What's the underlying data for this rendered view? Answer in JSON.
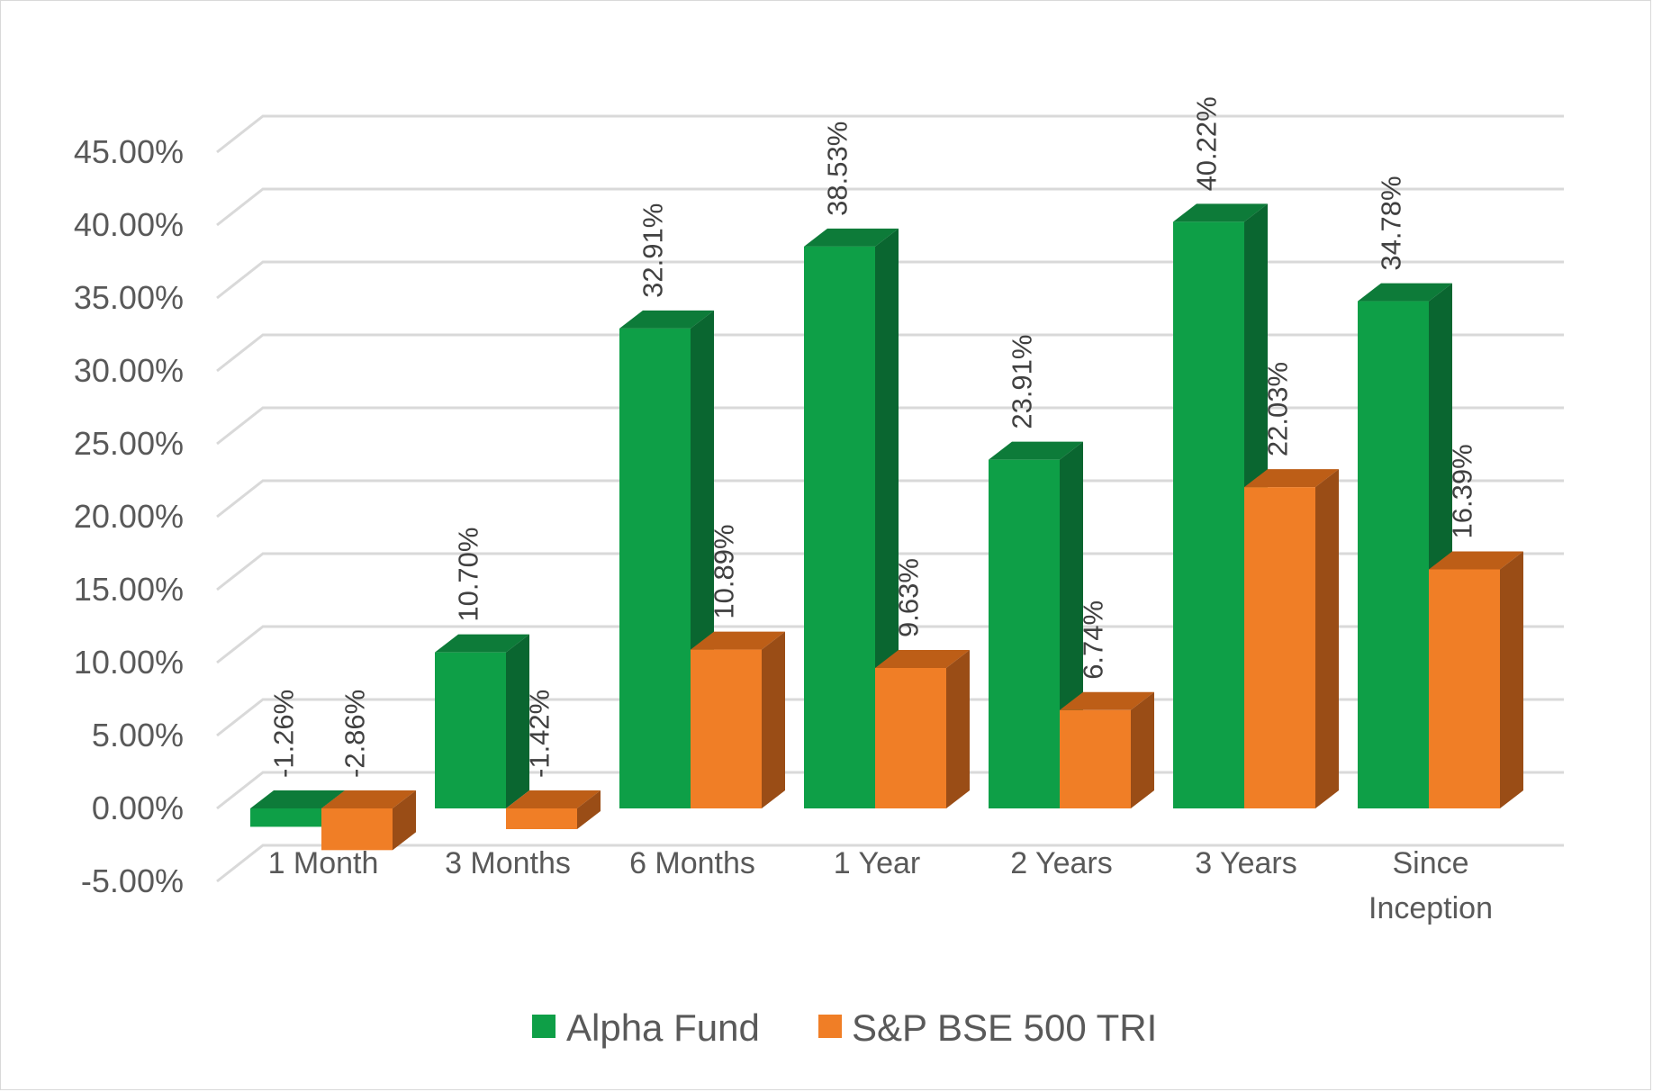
{
  "chart_data": {
    "type": "bar",
    "style": "3d-clustered-column",
    "categories": [
      "1 Month",
      "3 Months",
      "6 Months",
      "1 Year",
      "2 Years",
      "3 Years",
      "Since Inception"
    ],
    "series": [
      {
        "name": "Alpha Fund",
        "values": [
          -1.26,
          10.7,
          32.91,
          38.53,
          23.91,
          40.22,
          34.78
        ],
        "labels": [
          "-1.26%",
          "10.70%",
          "32.91%",
          "38.53%",
          "23.91%",
          "40.22%",
          "34.78%"
        ],
        "color": "#0e9f47",
        "top_color": "#0d7b39",
        "side_color": "#0a6630"
      },
      {
        "name": "S&P BSE 500 TRI",
        "values": [
          -2.86,
          -1.42,
          10.89,
          9.63,
          6.74,
          22.03,
          16.39
        ],
        "labels": [
          "-2.86%",
          "-1.42%",
          "10.89%",
          "9.63%",
          "6.74%",
          "22.03%",
          "16.39%"
        ],
        "color": "#f07e26",
        "top_color": "#bd5e17",
        "side_color": "#9a4d16"
      }
    ],
    "yaxis": {
      "min": -5,
      "max": 45,
      "step": 5,
      "tick_labels": [
        "-5.00%",
        "0.00%",
        "5.00%",
        "10.00%",
        "15.00%",
        "20.00%",
        "25.00%",
        "30.00%",
        "35.00%",
        "40.00%",
        "45.00%"
      ]
    },
    "grid": true,
    "legend_position": "bottom"
  }
}
